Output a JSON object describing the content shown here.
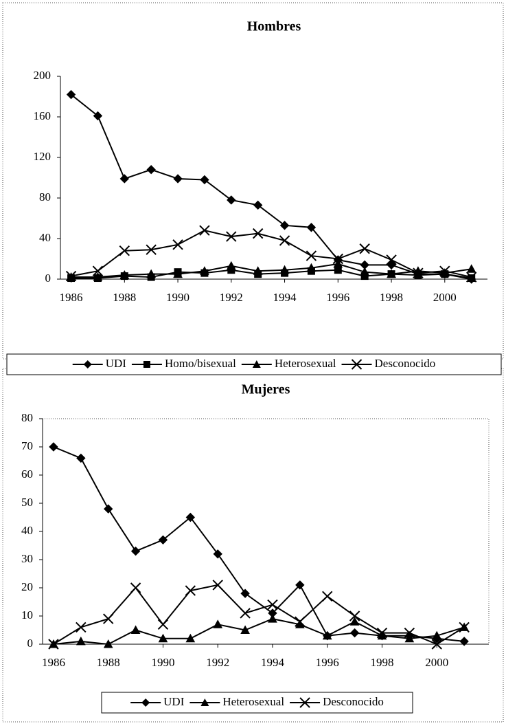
{
  "chart_data": [
    {
      "type": "line",
      "title": "Hombres",
      "x": [
        1986,
        1987,
        1988,
        1989,
        1990,
        1991,
        1992,
        1993,
        1994,
        1995,
        1996,
        1997,
        1998,
        1999,
        2000,
        2001
      ],
      "xlim": [
        1985.6,
        2001.6
      ],
      "xticks": [
        1986,
        1988,
        1990,
        1992,
        1994,
        1996,
        1998,
        2000
      ],
      "ylim": [
        0,
        200
      ],
      "yticks": [
        0,
        40,
        80,
        120,
        160,
        200
      ],
      "legend": "bottom",
      "series": [
        {
          "name": "UDI",
          "color": "#000000",
          "marker": "diamond",
          "values": [
            182,
            161,
            99,
            108,
            99,
            98,
            78,
            73,
            53,
            51,
            19,
            14,
            14,
            5,
            5,
            0
          ]
        },
        {
          "name": "Homo/bisexual",
          "color": "#000000",
          "marker": "square",
          "values": [
            1,
            1,
            3,
            2,
            7,
            6,
            9,
            5,
            6,
            8,
            9,
            3,
            5,
            4,
            5,
            1
          ]
        },
        {
          "name": "Heterosexual",
          "color": "#000000",
          "marker": "triangle",
          "values": [
            2,
            2,
            4,
            5,
            5,
            8,
            13,
            8,
            9,
            11,
            15,
            7,
            5,
            8,
            6,
            10
          ]
        },
        {
          "name": "Desconocido",
          "color": "#000000",
          "marker": "x",
          "values": [
            3,
            8,
            28,
            29,
            34,
            48,
            42,
            45,
            38,
            23,
            20,
            30,
            19,
            6,
            8,
            2
          ]
        }
      ]
    },
    {
      "type": "line",
      "title": "Mujeres",
      "x": [
        1986,
        1987,
        1988,
        1989,
        1990,
        1991,
        1992,
        1993,
        1994,
        1995,
        1996,
        1997,
        1998,
        1999,
        2000,
        2001
      ],
      "xlim": [
        1985.6,
        2001.9
      ],
      "xticks": [
        1986,
        1988,
        1990,
        1992,
        1994,
        1996,
        1998,
        2000
      ],
      "ylim": [
        0,
        80
      ],
      "yticks": [
        0,
        10,
        20,
        30,
        40,
        50,
        60,
        70,
        80
      ],
      "legend": "bottom",
      "series": [
        {
          "name": "UDI",
          "color": "#000000",
          "marker": "diamond",
          "values": [
            70,
            66,
            48,
            33,
            37,
            45,
            32,
            18,
            11,
            21,
            3,
            4,
            3,
            3,
            2,
            1
          ]
        },
        {
          "name": "Heterosexual",
          "color": "#000000",
          "marker": "triangle",
          "values": [
            0,
            1,
            0,
            5,
            2,
            2,
            7,
            5,
            9,
            7,
            3,
            8,
            3,
            2,
            3,
            6
          ]
        },
        {
          "name": "Desconocido",
          "color": "#000000",
          "marker": "x",
          "values": [
            0,
            6,
            9,
            20,
            7,
            19,
            21,
            11,
            14,
            8,
            17,
            10,
            4,
            4,
            0,
            6
          ]
        }
      ]
    }
  ]
}
